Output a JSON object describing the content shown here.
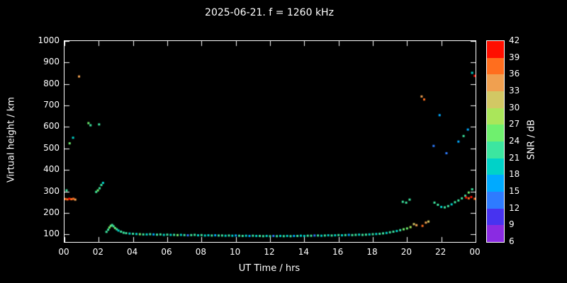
{
  "chart_data": {
    "type": "scatter",
    "title": "2025-06-21. f = 1260 kHz",
    "xlabel": "UT Time / hrs",
    "ylabel": "Virtual height / km",
    "colorbar_label": "SNR / dB",
    "xlim": [
      0,
      24
    ],
    "ylim": [
      65,
      1000
    ],
    "x_ticks": [
      {
        "v": 0,
        "label": "00"
      },
      {
        "v": 2,
        "label": "02"
      },
      {
        "v": 4,
        "label": "04"
      },
      {
        "v": 6,
        "label": "06"
      },
      {
        "v": 8,
        "label": "08"
      },
      {
        "v": 10,
        "label": "10"
      },
      {
        "v": 12,
        "label": "12"
      },
      {
        "v": 14,
        "label": "14"
      },
      {
        "v": 16,
        "label": "16"
      },
      {
        "v": 18,
        "label": "18"
      },
      {
        "v": 20,
        "label": "20"
      },
      {
        "v": 22,
        "label": "22"
      },
      {
        "v": 24,
        "label": "00"
      }
    ],
    "y_ticks": [
      100,
      200,
      300,
      400,
      500,
      600,
      700,
      800,
      900,
      1000
    ],
    "colorbar": {
      "min": 6,
      "max": 42,
      "ticks": [
        6,
        9,
        12,
        15,
        18,
        21,
        24,
        27,
        30,
        33,
        36,
        39,
        42
      ],
      "band_colors": [
        "#8A2BE2",
        "#4733F0",
        "#2E7BFF",
        "#00AAFF",
        "#00D2C8",
        "#3CE6A0",
        "#6FF06E",
        "#AAE65A",
        "#D2C864",
        "#F0A050",
        "#FF6E1E",
        "#FF0F00"
      ]
    },
    "points": [
      [
        0.05,
        265,
        38
      ],
      [
        0.17,
        263,
        36
      ],
      [
        0.28,
        266,
        39
      ],
      [
        0.4,
        264,
        37
      ],
      [
        0.52,
        266,
        36
      ],
      [
        0.63,
        262,
        33
      ],
      [
        0.12,
        305,
        23
      ],
      [
        0.3,
        524,
        24
      ],
      [
        0.5,
        550,
        18
      ],
      [
        0.85,
        835,
        33
      ],
      [
        1.4,
        618,
        24
      ],
      [
        1.52,
        608,
        23
      ],
      [
        2.02,
        612,
        22
      ],
      [
        1.85,
        298,
        22
      ],
      [
        1.95,
        305,
        24
      ],
      [
        2.05,
        315,
        23
      ],
      [
        2.15,
        330,
        21
      ],
      [
        2.25,
        340,
        20
      ],
      [
        2.45,
        112,
        21
      ],
      [
        2.55,
        122,
        23
      ],
      [
        2.62,
        132,
        24
      ],
      [
        2.7,
        140,
        25
      ],
      [
        2.78,
        144,
        23
      ],
      [
        2.86,
        138,
        22
      ],
      [
        2.95,
        130,
        24
      ],
      [
        3.05,
        124,
        21
      ],
      [
        3.15,
        118,
        20
      ],
      [
        3.3,
        113,
        22
      ],
      [
        3.45,
        108,
        21
      ],
      [
        3.6,
        106,
        22
      ],
      [
        3.8,
        104,
        20
      ],
      [
        4.0,
        103,
        23
      ],
      [
        4.2,
        102,
        19
      ],
      [
        4.4,
        101,
        24
      ],
      [
        4.6,
        100,
        21
      ],
      [
        4.8,
        100,
        18
      ],
      [
        5.0,
        101,
        22
      ],
      [
        5.2,
        100,
        15
      ],
      [
        5.4,
        99,
        21
      ],
      [
        5.6,
        100,
        23
      ],
      [
        5.8,
        98,
        20
      ],
      [
        6.0,
        99,
        22
      ],
      [
        6.2,
        98,
        18
      ],
      [
        6.4,
        98,
        21
      ],
      [
        6.6,
        97,
        24
      ],
      [
        6.8,
        98,
        20
      ],
      [
        7.0,
        97,
        22
      ],
      [
        7.2,
        96,
        14
      ],
      [
        7.4,
        97,
        21
      ],
      [
        7.6,
        98,
        23
      ],
      [
        7.8,
        96,
        19
      ],
      [
        8.0,
        97,
        22
      ],
      [
        8.2,
        95,
        20
      ],
      [
        8.4,
        96,
        18
      ],
      [
        8.6,
        95,
        22
      ],
      [
        8.8,
        96,
        15
      ],
      [
        9.0,
        95,
        21
      ],
      [
        9.2,
        95,
        23
      ],
      [
        9.4,
        94,
        19
      ],
      [
        9.6,
        95,
        22
      ],
      [
        9.8,
        94,
        20
      ],
      [
        10.0,
        95,
        17
      ],
      [
        10.2,
        94,
        21
      ],
      [
        10.4,
        93,
        23
      ],
      [
        10.6,
        94,
        20
      ],
      [
        10.8,
        93,
        15
      ],
      [
        11.0,
        94,
        22
      ],
      [
        11.2,
        93,
        19
      ],
      [
        11.4,
        93,
        21
      ],
      [
        11.6,
        92,
        23
      ],
      [
        11.8,
        93,
        18
      ],
      [
        12.0,
        92,
        21
      ],
      [
        12.2,
        93,
        14
      ],
      [
        12.4,
        92,
        22
      ],
      [
        12.6,
        93,
        20
      ],
      [
        12.8,
        92,
        23
      ],
      [
        13.0,
        93,
        19
      ],
      [
        13.2,
        92,
        21
      ],
      [
        13.4,
        93,
        15
      ],
      [
        13.6,
        93,
        22
      ],
      [
        13.8,
        94,
        20
      ],
      [
        14.0,
        93,
        18
      ],
      [
        14.2,
        94,
        22
      ],
      [
        14.4,
        94,
        21
      ],
      [
        14.6,
        95,
        14
      ],
      [
        14.8,
        95,
        22
      ],
      [
        15.0,
        94,
        20
      ],
      [
        15.2,
        95,
        23
      ],
      [
        15.4,
        96,
        19
      ],
      [
        15.6,
        95,
        21
      ],
      [
        15.8,
        96,
        18
      ],
      [
        16.0,
        97,
        22
      ],
      [
        16.2,
        96,
        20
      ],
      [
        16.4,
        97,
        23
      ],
      [
        16.6,
        98,
        15
      ],
      [
        16.8,
        97,
        21
      ],
      [
        17.0,
        98,
        22
      ],
      [
        17.2,
        99,
        19
      ],
      [
        17.4,
        98,
        21
      ],
      [
        17.6,
        99,
        23
      ],
      [
        17.8,
        100,
        20
      ],
      [
        18.0,
        101,
        22
      ],
      [
        18.2,
        102,
        18
      ],
      [
        18.4,
        103,
        21
      ],
      [
        18.6,
        105,
        22
      ],
      [
        18.8,
        107,
        20
      ],
      [
        19.0,
        110,
        23
      ],
      [
        19.2,
        113,
        21
      ],
      [
        19.4,
        116,
        19
      ],
      [
        19.6,
        120,
        22
      ],
      [
        19.8,
        124,
        24
      ],
      [
        20.0,
        128,
        26
      ],
      [
        20.2,
        134,
        28
      ],
      [
        20.4,
        148,
        31
      ],
      [
        20.55,
        143,
        34
      ],
      [
        20.9,
        140,
        38
      ],
      [
        21.1,
        155,
        33
      ],
      [
        21.25,
        160,
        30
      ],
      [
        19.75,
        252,
        22
      ],
      [
        19.95,
        248,
        23
      ],
      [
        20.15,
        262,
        21
      ],
      [
        20.85,
        742,
        34
      ],
      [
        21.0,
        728,
        37
      ],
      [
        21.9,
        655,
        16
      ],
      [
        21.55,
        512,
        13
      ],
      [
        22.3,
        478,
        12
      ],
      [
        21.6,
        248,
        21
      ],
      [
        21.8,
        238,
        22
      ],
      [
        22.0,
        228,
        20
      ],
      [
        22.2,
        226,
        23
      ],
      [
        22.4,
        232,
        21
      ],
      [
        22.6,
        240,
        19
      ],
      [
        22.8,
        250,
        22
      ],
      [
        23.0,
        258,
        23
      ],
      [
        23.2,
        268,
        21
      ],
      [
        23.4,
        280,
        22
      ],
      [
        23.6,
        295,
        24
      ],
      [
        23.8,
        310,
        22
      ],
      [
        23.45,
        272,
        39
      ],
      [
        23.6,
        268,
        37
      ],
      [
        23.75,
        274,
        40
      ],
      [
        23.95,
        266,
        38
      ],
      [
        23.0,
        532,
        17
      ],
      [
        23.3,
        558,
        22
      ],
      [
        23.55,
        588,
        17
      ],
      [
        23.8,
        852,
        18
      ],
      [
        23.95,
        838,
        40
      ]
    ]
  },
  "colors": {
    "background": "#000000",
    "foreground": "#ffffff"
  }
}
